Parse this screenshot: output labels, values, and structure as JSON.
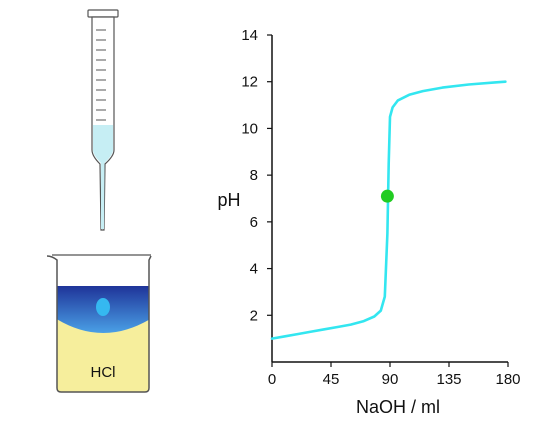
{
  "chart_data": {
    "type": "line",
    "title": "",
    "xlabel": "NaOH / ml",
    "ylabel": "pH",
    "xlim": [
      0,
      180
    ],
    "ylim": [
      0,
      14
    ],
    "xticks": [
      0,
      45,
      90,
      135,
      180
    ],
    "yticks": [
      2,
      4,
      6,
      8,
      10,
      12,
      14
    ],
    "grid": false,
    "series": [
      {
        "color": "#33e6f0",
        "points": [
          [
            0,
            1.0
          ],
          [
            10,
            1.1
          ],
          [
            20,
            1.2
          ],
          [
            30,
            1.3
          ],
          [
            40,
            1.4
          ],
          [
            50,
            1.5
          ],
          [
            60,
            1.6
          ],
          [
            70,
            1.75
          ],
          [
            78,
            1.95
          ],
          [
            83,
            2.2
          ],
          [
            86,
            2.8
          ],
          [
            88,
            5.5
          ],
          [
            89,
            8.5
          ],
          [
            90,
            10.5
          ],
          [
            92,
            10.9
          ],
          [
            96,
            11.2
          ],
          [
            105,
            11.45
          ],
          [
            115,
            11.6
          ],
          [
            130,
            11.75
          ],
          [
            150,
            11.88
          ],
          [
            170,
            11.97
          ],
          [
            178,
            12.0
          ]
        ]
      }
    ],
    "markers": [
      {
        "x": 88,
        "y": 7.1,
        "color": "#22cc22"
      }
    ]
  },
  "illustration": {
    "beaker_label": "HCl",
    "burette_icon": "burette-icon",
    "beaker_icon": "beaker-icon",
    "colors": {
      "burette_liquid": "#c6eef4",
      "acid_solution": "#f6ee9c",
      "base_layer_dark": "#1f3499",
      "base_layer_light": "#4aa0e6",
      "drop": "#35b8f0"
    }
  }
}
